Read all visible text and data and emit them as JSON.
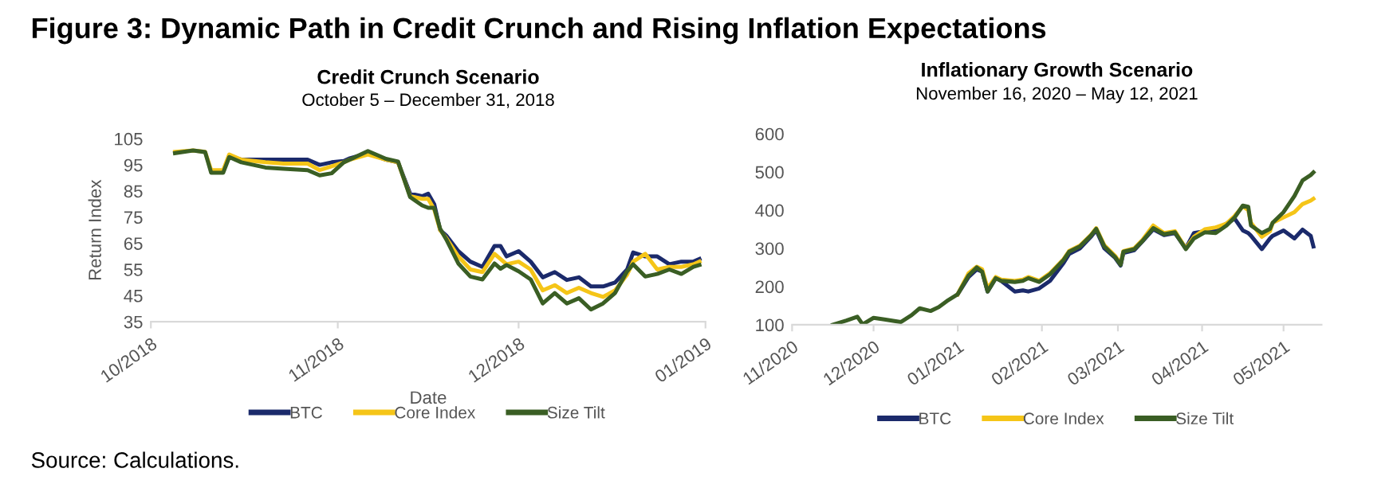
{
  "chart_data": [
    {
      "type": "line",
      "title": "Credit Crunch Scenario",
      "subtitle": "October 5 – December 31, 2018",
      "xlabel": "Date",
      "ylabel": "Return Index",
      "annotations": [
        "Figure 3: Dynamic Path in Credit Crunch and Rising Inflation Expectations",
        "Source: Calculations."
      ],
      "x": [
        "2018-10-05",
        "2018-10-08",
        "2018-10-10",
        "2018-10-11",
        "2018-10-13",
        "2018-10-14",
        "2018-10-16",
        "2018-10-20",
        "2018-10-23",
        "2018-10-27",
        "2018-10-29",
        "2018-10-31",
        "2018-11-02",
        "2018-11-03",
        "2018-11-06",
        "2018-11-09",
        "2018-11-11",
        "2018-11-13",
        "2018-11-15",
        "2018-11-16",
        "2018-11-17",
        "2018-11-18",
        "2018-11-19",
        "2018-11-21",
        "2018-11-23",
        "2018-11-25",
        "2018-11-27",
        "2018-11-28",
        "2018-11-29",
        "2018-12-01",
        "2018-12-03",
        "2018-12-05",
        "2018-12-07",
        "2018-12-09",
        "2018-12-11",
        "2018-12-13",
        "2018-12-15",
        "2018-12-17",
        "2018-12-19",
        "2018-12-20",
        "2018-12-22",
        "2018-12-24",
        "2018-12-26",
        "2018-12-28",
        "2018-12-30",
        "2018-12-31"
      ],
      "series": [
        {
          "name": "BTC",
          "color": "#1b2a6b",
          "values": [
            null,
            null,
            null,
            null,
            null,
            98,
            97,
            97,
            97,
            97,
            95,
            96,
            96.5,
            97.5,
            99.5,
            97,
            96,
            84,
            83,
            84,
            80,
            70,
            68,
            62,
            58,
            56,
            64,
            64,
            60,
            62,
            58,
            52,
            54,
            51,
            52,
            48.5,
            48.5,
            50,
            55,
            61.5,
            60,
            60,
            57,
            58,
            58,
            59
          ]
        },
        {
          "name": "Core Index",
          "color": "#f5c518",
          "values": [
            100,
            100.5,
            100,
            93,
            93,
            99,
            97,
            96,
            95.5,
            95.5,
            93,
            94.5,
            96,
            97,
            99,
            97,
            96,
            83,
            82,
            82,
            78,
            70,
            67,
            60,
            55,
            54,
            61,
            59,
            57,
            58,
            55,
            47,
            49,
            46,
            48,
            46,
            44.5,
            47,
            53,
            58,
            61,
            55,
            56,
            56,
            57,
            58
          ]
        },
        {
          "name": "Size Tilt",
          "color": "#3a5e24",
          "values": [
            99.5,
            100.5,
            99.9,
            92,
            92,
            98,
            96,
            94,
            93.5,
            93,
            91,
            91.8,
            96,
            97,
            100.3,
            97.3,
            96.3,
            82.7,
            79.5,
            78.6,
            78.6,
            70.5,
            66.5,
            57.3,
            52.3,
            51.2,
            57.3,
            55.3,
            56.7,
            54.3,
            51.2,
            42,
            46,
            42,
            44,
            39.7,
            42,
            46,
            54.3,
            57,
            52.3,
            53.3,
            55,
            53.3,
            56,
            56.7
          ]
        }
      ],
      "xlim": [
        "2018-10-01",
        "2019-01-01"
      ],
      "xticks": [
        {
          "value": "2018-10-01",
          "label": "10/2018"
        },
        {
          "value": "2018-11-01",
          "label": "11/2018"
        },
        {
          "value": "2018-12-01",
          "label": "12/2018"
        },
        {
          "value": "2019-01-01",
          "label": "01/2019"
        }
      ],
      "ylim": [
        35,
        105
      ],
      "yticks": [
        35,
        45,
        55,
        65,
        75,
        85,
        95,
        105
      ],
      "grid": false,
      "legend": "bottom",
      "marker": "none",
      "line_style": "solid"
    },
    {
      "type": "line",
      "title": "Inflationary Growth Scenario",
      "subtitle": "November 16, 2020 – May 12, 2021",
      "x": [
        "2020-11-16",
        "2020-11-21",
        "2020-11-25",
        "2020-11-27",
        "2020-12-01",
        "2020-12-05",
        "2020-12-11",
        "2020-12-15",
        "2020-12-18",
        "2020-12-22",
        "2020-12-25",
        "2020-12-28",
        "2021-01-01",
        "2021-01-05",
        "2021-01-08",
        "2021-01-10",
        "2021-01-12",
        "2021-01-15",
        "2021-01-17",
        "2021-01-22",
        "2021-01-25",
        "2021-01-27",
        "2021-01-31",
        "2021-02-04",
        "2021-02-09",
        "2021-02-11",
        "2021-02-15",
        "2021-02-19",
        "2021-02-21",
        "2021-02-24",
        "2021-02-28",
        "2021-03-02",
        "2021-03-03",
        "2021-03-07",
        "2021-03-10",
        "2021-03-14",
        "2021-03-18",
        "2021-03-22",
        "2021-03-26",
        "2021-03-29",
        "2021-04-02",
        "2021-04-06",
        "2021-04-10",
        "2021-04-13",
        "2021-04-16",
        "2021-04-18",
        "2021-04-19",
        "2021-04-23",
        "2021-04-26",
        "2021-04-27",
        "2021-05-01",
        "2021-05-05",
        "2021-05-08",
        "2021-05-11",
        "2021-05-12"
      ],
      "series": [
        {
          "name": "BTC",
          "color": "#1b2a6b",
          "values": [
            null,
            null,
            null,
            null,
            null,
            null,
            null,
            null,
            null,
            null,
            null,
            null,
            180,
            225,
            245,
            239,
            187,
            222,
            215,
            187,
            190,
            187,
            195,
            215,
            262,
            285,
            300,
            330,
            348,
            300,
            275,
            255,
            288,
            295,
            318,
            350,
            335,
            340,
            300,
            340,
            345,
            345,
            365,
            378,
            347,
            340,
            333,
            298,
            326,
            333,
            347,
            326,
            349,
            333,
            305
          ]
        },
        {
          "name": "Core Index",
          "color": "#f5c518",
          "values": [
            null,
            null,
            null,
            null,
            null,
            null,
            null,
            null,
            null,
            null,
            null,
            null,
            180,
            235,
            252,
            245,
            195,
            225,
            218,
            215,
            218,
            225,
            215,
            235,
            272,
            293,
            307,
            335,
            353,
            308,
            280,
            260,
            293,
            300,
            322,
            360,
            340,
            345,
            300,
            330,
            350,
            355,
            365,
            385,
            410,
            400,
            367,
            330,
            345,
            367,
            381,
            395,
            416,
            425,
            430
          ]
        },
        {
          "name": "Size Tilt",
          "color": "#3a5e24",
          "values": [
            100,
            111,
            121,
            101,
            118,
            114,
            107,
            125,
            143,
            136,
            146,
            162,
            180,
            229,
            250,
            239,
            187,
            222,
            215,
            212,
            215,
            222,
            212,
            232,
            270,
            291,
            305,
            333,
            351,
            305,
            277,
            257,
            291,
            298,
            319,
            353,
            337,
            342,
            298,
            326,
            342,
            340,
            360,
            381,
            412,
            409,
            360,
            340,
            351,
            367,
            395,
            437,
            478,
            492,
            499
          ]
        }
      ],
      "xlim": [
        "2020-11-01",
        "2021-05-15"
      ],
      "xticks": [
        {
          "value": "2020-11-01",
          "label": "11/2020"
        },
        {
          "value": "2020-12-01",
          "label": "12/2020"
        },
        {
          "value": "2021-01-01",
          "label": "01/2021"
        },
        {
          "value": "2021-02-01",
          "label": "02/2021"
        },
        {
          "value": "2021-03-01",
          "label": "03/2021"
        },
        {
          "value": "2021-04-01",
          "label": "04/2021"
        },
        {
          "value": "2021-05-01",
          "label": "05/2021"
        }
      ],
      "ylim": [
        100,
        600
      ],
      "yticks": [
        100,
        200,
        300,
        400,
        500,
        600
      ],
      "grid": false,
      "legend": "bottom",
      "marker": "none",
      "line_style": "solid"
    }
  ]
}
